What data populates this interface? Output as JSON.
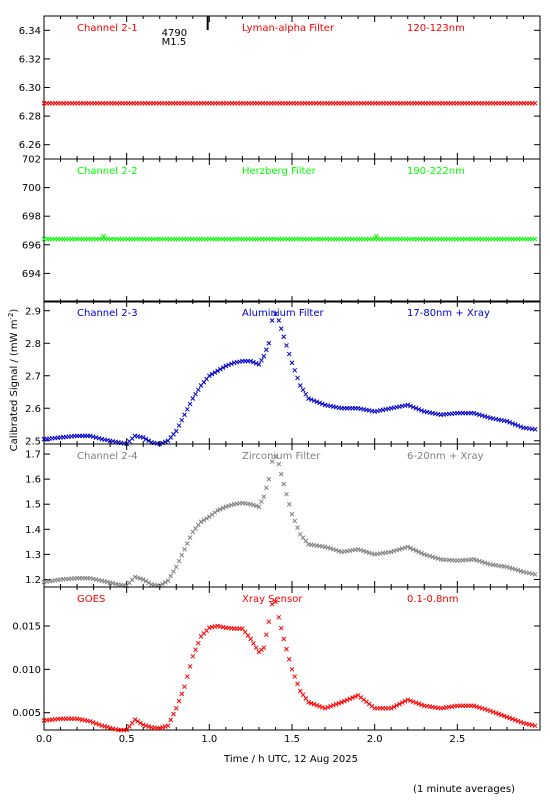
{
  "ylabel": "Calibrated Signal / (mW m",
  "ylabel_sup": "-2",
  "ylabel_close": ")",
  "xlabel": "Time / h UTC, 12 Aug 2025",
  "footnote": "(1 minute averages)",
  "flare_marker": {
    "time": 0.99,
    "line1": "4790",
    "line2": "M1.5"
  },
  "chart_data": [
    {
      "type": "scatter",
      "name": "Channel 2-1",
      "filter": "Lyman-alpha Filter",
      "band": "120-123nm",
      "color": "#ff0000",
      "ylim": [
        6.25,
        6.35
      ],
      "yticks": [
        6.26,
        6.28,
        6.3,
        6.32,
        6.34
      ],
      "ytick_labels": [
        "6.26",
        "6.28",
        "6.30",
        "6.32",
        "6.34"
      ],
      "x": [
        0.0,
        2.97
      ],
      "y": [
        6.289,
        6.289
      ]
    },
    {
      "type": "scatter",
      "name": "Channel 2-2",
      "filter": "Herzberg Filter",
      "band": "190-222nm",
      "color": "#00ff00",
      "ylim": [
        692,
        702
      ],
      "yticks": [
        694,
        696,
        698,
        700,
        702
      ],
      "ytick_labels": [
        "694",
        "696",
        "698",
        "700",
        "702"
      ],
      "x": [
        0.0,
        0.35,
        0.36,
        0.37,
        2.0,
        2.01,
        2.02,
        2.97
      ],
      "y": [
        696.4,
        696.4,
        696.6,
        696.4,
        696.4,
        696.6,
        696.4,
        696.4
      ]
    },
    {
      "type": "scatter",
      "name": "Channel 2-3",
      "filter": "Aluminium Filter",
      "band": "17-80nm + Xray",
      "color": "#0000cc",
      "ylim": [
        2.49,
        2.93
      ],
      "yticks": [
        2.5,
        2.6,
        2.7,
        2.8,
        2.9
      ],
      "ytick_labels": [
        "2.5",
        "2.6",
        "2.7",
        "2.8",
        "2.9"
      ],
      "x": [
        0.0,
        0.1,
        0.2,
        0.28,
        0.35,
        0.45,
        0.5,
        0.55,
        0.6,
        0.65,
        0.7,
        0.75,
        0.8,
        0.85,
        0.9,
        0.95,
        1.0,
        1.05,
        1.1,
        1.15,
        1.2,
        1.25,
        1.3,
        1.33,
        1.36,
        1.38,
        1.4,
        1.42,
        1.45,
        1.5,
        1.55,
        1.6,
        1.7,
        1.8,
        1.9,
        2.0,
        2.1,
        2.2,
        2.3,
        2.4,
        2.5,
        2.6,
        2.7,
        2.8,
        2.9,
        2.97
      ],
      "y": [
        2.505,
        2.51,
        2.515,
        2.515,
        2.505,
        2.495,
        2.49,
        2.515,
        2.51,
        2.495,
        2.49,
        2.5,
        2.53,
        2.58,
        2.63,
        2.67,
        2.7,
        2.715,
        2.73,
        2.74,
        2.745,
        2.745,
        2.735,
        2.76,
        2.8,
        2.87,
        2.89,
        2.87,
        2.82,
        2.74,
        2.67,
        2.63,
        2.61,
        2.6,
        2.6,
        2.59,
        2.6,
        2.61,
        2.59,
        2.58,
        2.585,
        2.585,
        2.57,
        2.56,
        2.54,
        2.535
      ]
    },
    {
      "type": "scatter",
      "name": "Channel 2-4",
      "filter": "Zirconium Filter",
      "band": "6-20nm + Xray",
      "color": "#808080",
      "ylim": [
        1.17,
        1.74
      ],
      "yticks": [
        1.2,
        1.3,
        1.4,
        1.5,
        1.6,
        1.7
      ],
      "ytick_labels": [
        "1.2",
        "1.3",
        "1.4",
        "1.5",
        "1.6",
        "1.7"
      ],
      "x": [
        0.0,
        0.1,
        0.2,
        0.28,
        0.35,
        0.45,
        0.5,
        0.55,
        0.6,
        0.65,
        0.7,
        0.75,
        0.8,
        0.85,
        0.9,
        0.95,
        1.0,
        1.05,
        1.1,
        1.15,
        1.2,
        1.25,
        1.3,
        1.33,
        1.36,
        1.38,
        1.4,
        1.42,
        1.45,
        1.5,
        1.55,
        1.6,
        1.7,
        1.8,
        1.9,
        2.0,
        2.1,
        2.2,
        2.3,
        2.4,
        2.5,
        2.6,
        2.7,
        2.8,
        2.9,
        2.97
      ],
      "y": [
        1.19,
        1.2,
        1.205,
        1.205,
        1.195,
        1.18,
        1.175,
        1.21,
        1.2,
        1.18,
        1.175,
        1.195,
        1.25,
        1.32,
        1.39,
        1.43,
        1.45,
        1.475,
        1.49,
        1.5,
        1.505,
        1.5,
        1.49,
        1.53,
        1.6,
        1.67,
        1.69,
        1.66,
        1.58,
        1.46,
        1.38,
        1.34,
        1.33,
        1.31,
        1.32,
        1.3,
        1.31,
        1.33,
        1.3,
        1.28,
        1.275,
        1.28,
        1.26,
        1.25,
        1.23,
        1.22
      ]
    },
    {
      "type": "scatter",
      "name": "GOES",
      "filter": "Xray Sensor",
      "band": "0.1-0.8nm",
      "color": "#ff0000",
      "ylim": [
        0.003,
        0.0195
      ],
      "yticks": [
        0.005,
        0.01,
        0.015
      ],
      "ytick_labels": [
        "0.005",
        "0.010",
        "0.015"
      ],
      "x": [
        0.0,
        0.1,
        0.2,
        0.28,
        0.35,
        0.45,
        0.5,
        0.55,
        0.6,
        0.65,
        0.7,
        0.75,
        0.8,
        0.85,
        0.9,
        0.95,
        1.0,
        1.05,
        1.1,
        1.15,
        1.2,
        1.25,
        1.3,
        1.33,
        1.36,
        1.38,
        1.4,
        1.42,
        1.45,
        1.5,
        1.55,
        1.6,
        1.7,
        1.8,
        1.9,
        2.0,
        2.1,
        2.2,
        2.3,
        2.4,
        2.5,
        2.6,
        2.7,
        2.8,
        2.9,
        2.97
      ],
      "y": [
        0.0041,
        0.0043,
        0.0043,
        0.004,
        0.0035,
        0.003,
        0.003,
        0.0042,
        0.0036,
        0.0033,
        0.0032,
        0.0035,
        0.0055,
        0.008,
        0.0115,
        0.0138,
        0.0148,
        0.015,
        0.0148,
        0.0147,
        0.0147,
        0.0135,
        0.012,
        0.0125,
        0.0155,
        0.0175,
        0.0178,
        0.016,
        0.0135,
        0.01,
        0.0075,
        0.0062,
        0.0055,
        0.0062,
        0.007,
        0.0055,
        0.0055,
        0.0065,
        0.0058,
        0.0055,
        0.0058,
        0.0058,
        0.0052,
        0.0045,
        0.0038,
        0.0035
      ]
    }
  ],
  "x_axis": {
    "xlim": [
      0.0,
      3.0
    ],
    "ticks": [
      0.0,
      0.5,
      1.0,
      1.5,
      2.0,
      2.5
    ],
    "tick_labels": [
      "0.0",
      "0.5",
      "1.0",
      "1.5",
      "2.0",
      "2.5"
    ]
  }
}
